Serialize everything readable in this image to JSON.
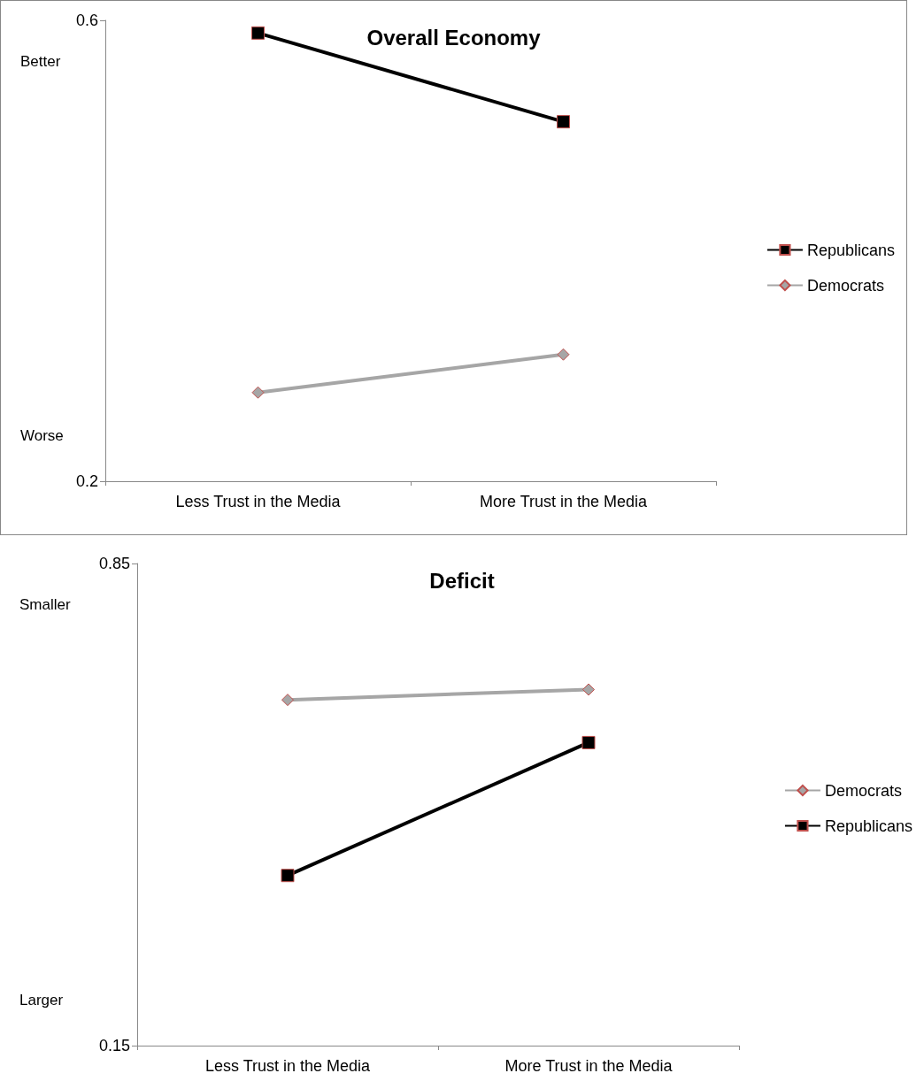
{
  "chart_data": [
    {
      "type": "line",
      "title": "Overall Economy",
      "categories": [
        "Less Trust in the Media",
        "More Trust in the Media"
      ],
      "series": [
        {
          "name": "Republicans",
          "color": "#000000",
          "marker": "square",
          "values": [
            0.589,
            0.512
          ]
        },
        {
          "name": "Democrats",
          "color": "#a6a6a6",
          "marker": "diamond",
          "values": [
            0.277,
            0.31
          ]
        }
      ],
      "ylim": [
        0.2,
        0.6
      ],
      "yticks": [
        0.2,
        0.6
      ],
      "grid": false,
      "legend": "right",
      "annotations": [
        "Better",
        "Worse"
      ]
    },
    {
      "type": "line",
      "title": "Deficit",
      "categories": [
        "Less Trust in the Media",
        "More Trust in the Media"
      ],
      "series": [
        {
          "name": "Democrats",
          "color": "#a6a6a6",
          "marker": "diamond",
          "values": [
            0.652,
            0.667
          ]
        },
        {
          "name": "Republicans",
          "color": "#000000",
          "marker": "square",
          "values": [
            0.397,
            0.59
          ]
        }
      ],
      "ylim": [
        0.15,
        0.85
      ],
      "yticks": [
        0.15,
        0.85
      ],
      "grid": false,
      "legend": "right",
      "annotations": [
        "Smaller",
        "Larger"
      ]
    }
  ]
}
